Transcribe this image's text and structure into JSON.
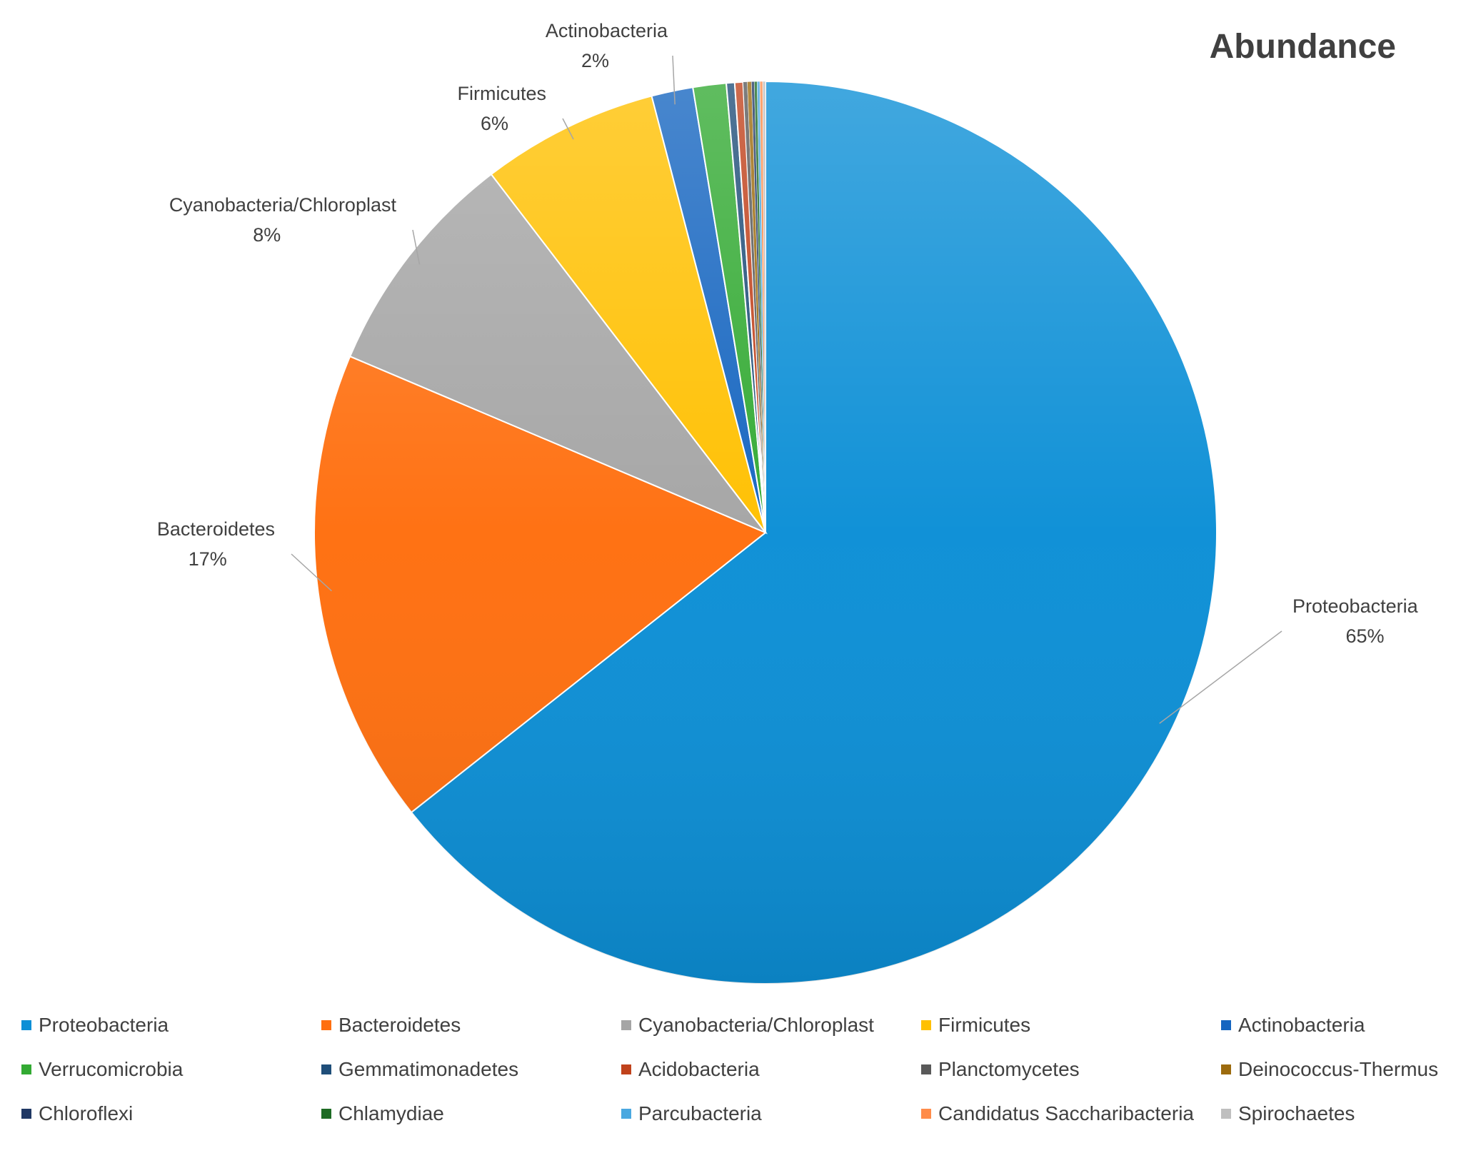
{
  "chart_data": {
    "type": "pie",
    "title": "Abundance",
    "slices": [
      {
        "name": "Proteobacteria",
        "value": 65.0,
        "label": "65%",
        "color": "#0C8FD6",
        "show_label": true,
        "label_anchor": "start"
      },
      {
        "name": "Bacteroidetes",
        "value": 17.2,
        "label": "17%",
        "color": "#FF6F0F",
        "show_label": true,
        "label_anchor": "end"
      },
      {
        "name": "Cyanobacteria/Chloroplast",
        "value": 8.3,
        "label": "8%",
        "color": "#A5A5A5",
        "show_label": true,
        "label_anchor": "end"
      },
      {
        "name": "Firmicutes",
        "value": 6.4,
        "label": "6%",
        "color": "#FFC000",
        "show_label": true,
        "label_anchor": "end"
      },
      {
        "name": "Actinobacteria",
        "value": 1.5,
        "label": "2%",
        "color": "#1565C0",
        "show_label": true,
        "label_anchor": "end"
      },
      {
        "name": "Verrucomicrobia",
        "value": 1.2,
        "label": "",
        "color": "#33AA33",
        "show_label": false
      },
      {
        "name": "Gemmatimonadetes",
        "value": 0.3,
        "label": "",
        "color": "#1F4E79",
        "show_label": false
      },
      {
        "name": "Acidobacteria",
        "value": 0.3,
        "label": "",
        "color": "#C0421C",
        "show_label": false
      },
      {
        "name": "Planctomycetes",
        "value": 0.15,
        "label": "",
        "color": "#595959",
        "show_label": false
      },
      {
        "name": "Deinococcus-Thermus",
        "value": 0.15,
        "label": "",
        "color": "#9C6B0E",
        "show_label": false
      },
      {
        "name": "Chloroflexi",
        "value": 0.1,
        "label": "",
        "color": "#203864",
        "show_label": false
      },
      {
        "name": "Chlamydiae",
        "value": 0.1,
        "label": "",
        "color": "#1E6B24",
        "show_label": false
      },
      {
        "name": "Parcubacteria",
        "value": 0.1,
        "label": "",
        "color": "#4AA8E0",
        "show_label": false
      },
      {
        "name": "Candidatus Saccharibacteria",
        "value": 0.1,
        "label": "",
        "color": "#FF8C4A",
        "show_label": false
      },
      {
        "name": "Spirochaetes",
        "value": 0.1,
        "label": "",
        "color": "#BFBFBF",
        "show_label": false
      }
    ],
    "legend_position": "bottom"
  }
}
